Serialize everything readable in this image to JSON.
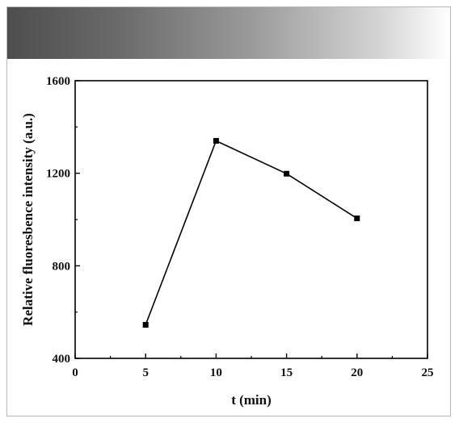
{
  "chart_data": {
    "type": "line",
    "title": "",
    "xlabel": "t (min)",
    "ylabel": "Relative fluoresbence intensity (a.u.)",
    "xlim": [
      0,
      25
    ],
    "ylim": [
      400,
      1600
    ],
    "xticks": [
      "0",
      "5",
      "10",
      "15",
      "20",
      "25"
    ],
    "yticks": [
      "400",
      "800",
      "1200",
      "1600"
    ],
    "grid": false,
    "series": [
      {
        "x": [
          5,
          10,
          15,
          20
        ],
        "values": [
          545,
          1340,
          1198,
          1005
        ]
      }
    ],
    "colors": {
      "line": "#000000",
      "marker": "#000000"
    }
  }
}
